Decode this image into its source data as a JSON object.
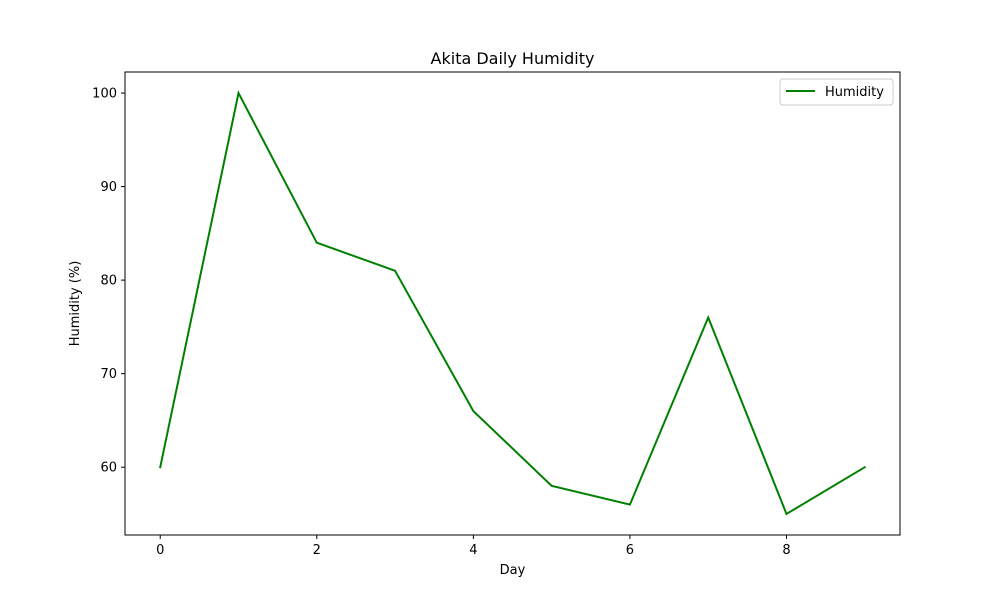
{
  "chart_data": {
    "type": "line",
    "title": "Akita Daily Humidity",
    "xlabel": "Day",
    "ylabel": "Humidity (%)",
    "x": [
      0,
      1,
      2,
      3,
      4,
      5,
      6,
      7,
      8,
      9
    ],
    "series": [
      {
        "name": "Humidity",
        "color": "#008000",
        "values": [
          60,
          100,
          84,
          81,
          66,
          58,
          56,
          76,
          55,
          60
        ]
      }
    ],
    "xlim": [
      -0.45,
      9.45
    ],
    "ylim": [
      52.75,
      102.25
    ],
    "xticks": [
      0,
      2,
      4,
      6,
      8
    ],
    "yticks": [
      60,
      70,
      80,
      90,
      100
    ],
    "xtick_labels": [
      "0",
      "2",
      "4",
      "6",
      "8"
    ],
    "ytick_labels": [
      "60",
      "70",
      "80",
      "90",
      "100"
    ],
    "grid": false,
    "legend": {
      "placement": "top-right"
    }
  }
}
